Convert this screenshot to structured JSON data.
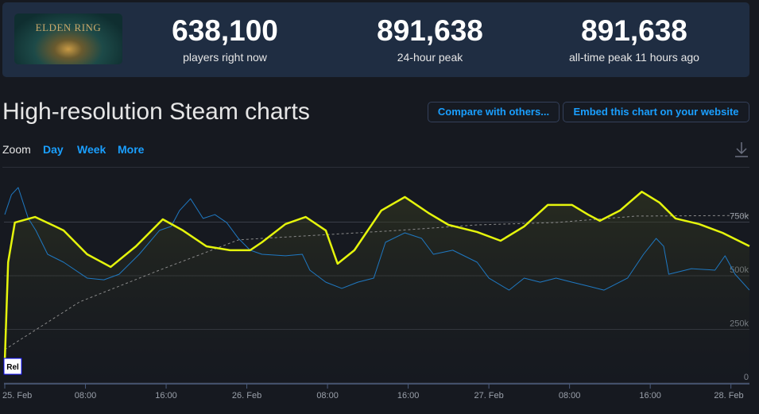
{
  "header": {
    "logo_text": "ELDEN RING",
    "stats": [
      {
        "value": "638,100",
        "label": "players right now"
      },
      {
        "value": "891,638",
        "label": "24-hour peak"
      },
      {
        "value": "891,638",
        "label": "all-time peak 11 hours ago"
      }
    ]
  },
  "title": "High-resolution Steam charts",
  "buttons": {
    "compare": "Compare with others...",
    "embed": "Embed this chart on your website"
  },
  "zoom": {
    "label": "Zoom",
    "options": [
      "Day",
      "Week",
      "More"
    ]
  },
  "icons": {
    "download": "download-icon"
  },
  "colors": {
    "accent": "#1a9fff",
    "series_yellow": "#e5f50c",
    "series_blue": "#1f78c1",
    "series_dashed": "#8a8a8a",
    "header_bg": "#1f2d42",
    "page_bg": "#161920"
  },
  "chart_data": {
    "type": "line",
    "y_ticks": [
      "0",
      "250k",
      "500k",
      "750k"
    ],
    "y_tick_values": [
      0,
      250000,
      500000,
      750000
    ],
    "ylim": [
      0,
      1000000
    ],
    "x_ticks": [
      "25. Feb",
      "08:00",
      "16:00",
      "26. Feb",
      "08:00",
      "16:00",
      "27. Feb",
      "08:00",
      "16:00",
      "28. Feb"
    ],
    "x_tick_times": [
      "25 Feb 00:00",
      "25 Feb 08:00",
      "25 Feb 16:00",
      "26 Feb 00:00",
      "26 Feb 08:00",
      "26 Feb 16:00",
      "27 Feb 00:00",
      "27 Feb 08:00",
      "27 Feb 16:00",
      "28 Feb 00:00"
    ],
    "grid": true,
    "flag": {
      "label": "Rel",
      "time": "25 Feb 00:00"
    },
    "series": [
      {
        "color": "#e5f50c",
        "style": "solid",
        "points": [
          [
            "25 Feb 00:00",
            100000
          ],
          [
            "25 Feb 00:20",
            563000
          ],
          [
            "25 Feb 01:00",
            748000
          ],
          [
            "25 Feb 03:00",
            774000
          ],
          [
            "25 Feb 05:00",
            730000
          ],
          [
            "25 Feb 05:50",
            711000
          ],
          [
            "25 Feb 08:10",
            600000
          ],
          [
            "25 Feb 10:30",
            541000
          ],
          [
            "25 Feb 13:00",
            637000
          ],
          [
            "25 Feb 15:40",
            763000
          ],
          [
            "25 Feb 17:40",
            711000
          ],
          [
            "25 Feb 20:00",
            637000
          ],
          [
            "25 Feb 22:20",
            619000
          ],
          [
            "26 Feb 00:20",
            619000
          ],
          [
            "26 Feb 01:30",
            656000
          ],
          [
            "26 Feb 03:50",
            741000
          ],
          [
            "26 Feb 05:50",
            774000
          ],
          [
            "26 Feb 07:50",
            711000
          ],
          [
            "26 Feb 08:40",
            600000
          ],
          [
            "26 Feb 09:00",
            556000
          ],
          [
            "26 Feb 10:40",
            619000
          ],
          [
            "26 Feb 13:20",
            804000
          ],
          [
            "26 Feb 15:40",
            867000
          ],
          [
            "26 Feb 18:00",
            793000
          ],
          [
            "26 Feb 20:00",
            737000
          ],
          [
            "26 Feb 22:50",
            704000
          ],
          [
            "27 Feb 01:10",
            663000
          ],
          [
            "27 Feb 03:30",
            730000
          ],
          [
            "27 Feb 05:50",
            830000
          ],
          [
            "27 Feb 08:15",
            830000
          ],
          [
            "27 Feb 09:50",
            785000
          ],
          [
            "27 Feb 11:00",
            756000
          ],
          [
            "27 Feb 13:00",
            804000
          ],
          [
            "27 Feb 15:10",
            891638
          ],
          [
            "27 Feb 16:55",
            841000
          ],
          [
            "27 Feb 18:30",
            767000
          ],
          [
            "27 Feb 20:50",
            741000
          ],
          [
            "27 Feb 23:10",
            700000
          ],
          [
            "28 Feb 01:50",
            638100
          ]
        ]
      },
      {
        "color": "#1f78c1",
        "style": "thin",
        "points": [
          [
            "25 Feb 00:00",
            785000
          ],
          [
            "25 Feb 00:40",
            878000
          ],
          [
            "25 Feb 01:20",
            911000
          ],
          [
            "25 Feb 02:20",
            767000
          ],
          [
            "25 Feb 03:05",
            711000
          ],
          [
            "25 Feb 04:15",
            600000
          ],
          [
            "25 Feb 05:50",
            563000
          ],
          [
            "25 Feb 08:10",
            489000
          ],
          [
            "25 Feb 09:50",
            481000
          ],
          [
            "25 Feb 11:20",
            507000
          ],
          [
            "25 Feb 13:20",
            600000
          ],
          [
            "25 Feb 15:20",
            711000
          ],
          [
            "25 Feb 16:30",
            730000
          ],
          [
            "25 Feb 17:20",
            804000
          ],
          [
            "25 Feb 18:25",
            859000
          ],
          [
            "25 Feb 19:40",
            767000
          ],
          [
            "25 Feb 20:50",
            785000
          ],
          [
            "25 Feb 22:00",
            748000
          ],
          [
            "25 Feb 23:10",
            674000
          ],
          [
            "26 Feb 00:20",
            619000
          ],
          [
            "26 Feb 01:30",
            600000
          ],
          [
            "26 Feb 03:50",
            593000
          ],
          [
            "26 Feb 05:30",
            600000
          ],
          [
            "26 Feb 06:15",
            526000
          ],
          [
            "26 Feb 07:50",
            470000
          ],
          [
            "26 Feb 09:25",
            441000
          ],
          [
            "26 Feb 11:00",
            470000
          ],
          [
            "26 Feb 12:35",
            489000
          ],
          [
            "26 Feb 13:45",
            656000
          ],
          [
            "26 Feb 15:40",
            700000
          ],
          [
            "26 Feb 17:20",
            674000
          ],
          [
            "26 Feb 18:30",
            600000
          ],
          [
            "26 Feb 20:25",
            619000
          ],
          [
            "26 Feb 22:50",
            563000
          ],
          [
            "27 Feb 00:00",
            489000
          ],
          [
            "27 Feb 02:00",
            433000
          ],
          [
            "27 Feb 03:30",
            489000
          ],
          [
            "27 Feb 05:05",
            470000
          ],
          [
            "27 Feb 06:40",
            489000
          ],
          [
            "27 Feb 08:15",
            470000
          ],
          [
            "27 Feb 09:50",
            452000
          ],
          [
            "27 Feb 11:25",
            433000
          ],
          [
            "27 Feb 13:45",
            489000
          ],
          [
            "27 Feb 15:20",
            600000
          ],
          [
            "27 Feb 16:35",
            674000
          ],
          [
            "27 Feb 17:20",
            637000
          ],
          [
            "27 Feb 17:50",
            507000
          ],
          [
            "27 Feb 20:05",
            533000
          ],
          [
            "27 Feb 22:25",
            526000
          ],
          [
            "27 Feb 23:25",
            593000
          ],
          [
            "28 Feb 00:25",
            507000
          ],
          [
            "28 Feb 01:50",
            433000
          ]
        ]
      },
      {
        "color": "#8a8a8a",
        "style": "dashed",
        "points": [
          [
            "25 Feb 00:00",
            156000
          ],
          [
            "25 Feb 07:25",
            378000
          ],
          [
            "25 Feb 15:20",
            526000
          ],
          [
            "25 Feb 23:10",
            667000
          ],
          [
            "26 Feb 01:30",
            674000
          ],
          [
            "26 Feb 07:00",
            689000
          ],
          [
            "26 Feb 14:55",
            711000
          ],
          [
            "26 Feb 22:50",
            737000
          ],
          [
            "27 Feb 06:40",
            748000
          ],
          [
            "27 Feb 14:35",
            778000
          ],
          [
            "28 Feb 01:50",
            781000
          ]
        ]
      }
    ]
  }
}
